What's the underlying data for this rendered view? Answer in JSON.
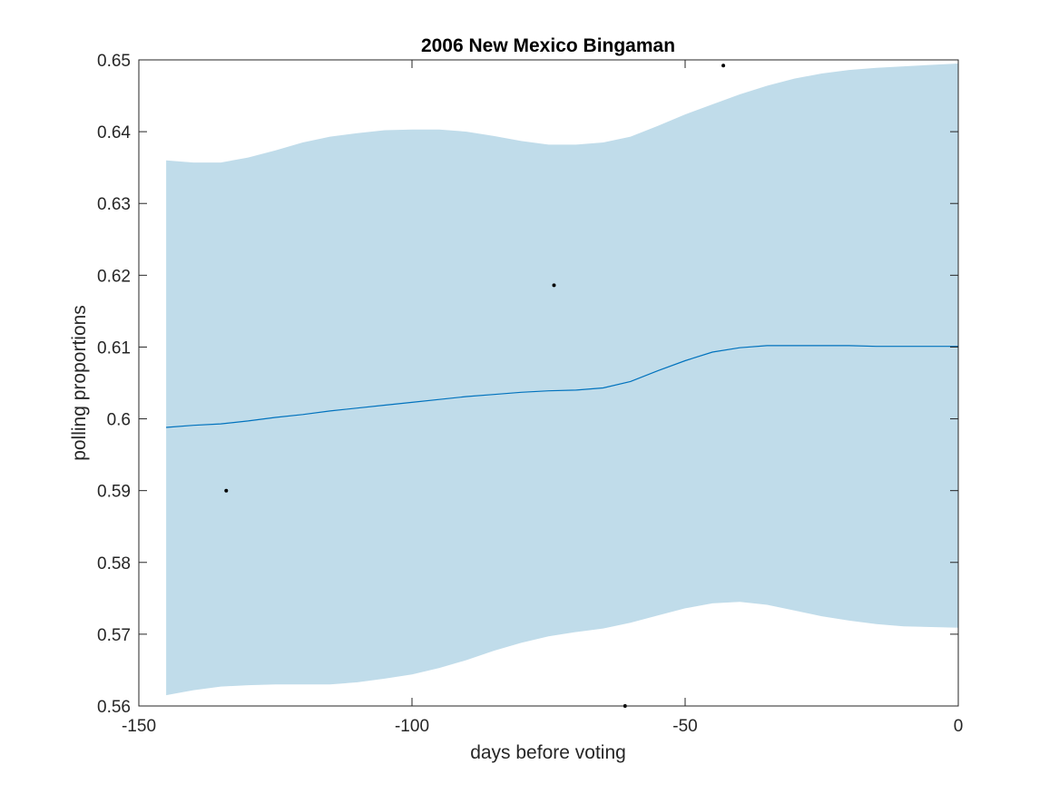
{
  "chart_data": {
    "type": "line",
    "title": "2006 New Mexico Bingaman",
    "xlabel": "days before voting",
    "ylabel": "polling proportions",
    "xlim": [
      -150,
      0
    ],
    "ylim": [
      0.56,
      0.65
    ],
    "xticks": [
      -150,
      -100,
      -50,
      0
    ],
    "yticks": [
      0.56,
      0.57,
      0.58,
      0.59,
      0.6,
      0.61,
      0.62,
      0.63,
      0.64,
      0.65
    ],
    "grid": false,
    "legend": "none",
    "colors": {
      "band": "#c0dcea",
      "line": "#0072bd",
      "points": "#000000"
    },
    "series": [
      {
        "type": "line",
        "x": [
          -145,
          -140,
          -135,
          -130,
          -125,
          -120,
          -115,
          -110,
          -105,
          -100,
          -95,
          -90,
          -85,
          -80,
          -75,
          -70,
          -65,
          -60,
          -55,
          -50,
          -45,
          -40,
          -35,
          -30,
          -25,
          -20,
          -15,
          -10,
          -5,
          0
        ],
        "values": [
          0.5988,
          0.5991,
          0.5993,
          0.5997,
          0.6002,
          0.6006,
          0.6011,
          0.6015,
          0.6019,
          0.6023,
          0.6027,
          0.6031,
          0.6034,
          0.6037,
          0.6039,
          0.604,
          0.6043,
          0.6052,
          0.6067,
          0.6081,
          0.6093,
          0.6099,
          0.6102,
          0.6102,
          0.6102,
          0.6102,
          0.6101,
          0.6101,
          0.6101,
          0.6101
        ]
      },
      {
        "type": "area",
        "x": [
          -145,
          -140,
          -135,
          -130,
          -125,
          -120,
          -115,
          -110,
          -105,
          -100,
          -95,
          -90,
          -85,
          -80,
          -75,
          -70,
          -65,
          -60,
          -55,
          -50,
          -45,
          -40,
          -35,
          -30,
          -25,
          -20,
          -15,
          -10,
          -5,
          0
        ],
        "upper": [
          0.636,
          0.6357,
          0.6357,
          0.6364,
          0.6374,
          0.6385,
          0.6393,
          0.6398,
          0.6402,
          0.6403,
          0.6403,
          0.64,
          0.6394,
          0.6387,
          0.6382,
          0.6382,
          0.6385,
          0.6393,
          0.6408,
          0.6424,
          0.6438,
          0.6452,
          0.6464,
          0.6474,
          0.6481,
          0.6486,
          0.6489,
          0.6491,
          0.6493,
          0.6495
        ],
        "lower": [
          0.5615,
          0.5622,
          0.5627,
          0.5629,
          0.563,
          0.563,
          0.563,
          0.5633,
          0.5638,
          0.5644,
          0.5653,
          0.5664,
          0.5677,
          0.5688,
          0.5697,
          0.5703,
          0.5708,
          0.5716,
          0.5726,
          0.5736,
          0.5743,
          0.5745,
          0.5741,
          0.5733,
          0.5725,
          0.5719,
          0.5714,
          0.5711,
          0.571,
          0.5709
        ]
      },
      {
        "type": "scatter",
        "x": [
          -134,
          -74,
          -61,
          -43
        ],
        "values": [
          0.59,
          0.6186,
          0.56,
          0.6492
        ]
      }
    ]
  }
}
